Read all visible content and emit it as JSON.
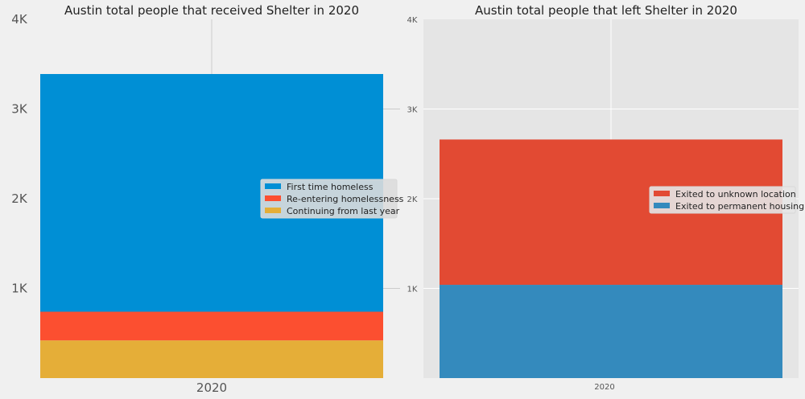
{
  "chart_data": [
    {
      "type": "bar",
      "stacked": true,
      "title": "Austin total people that received Shelter in 2020",
      "categories": [
        "2020"
      ],
      "ylim": [
        0,
        4000
      ],
      "yticks": [
        1000,
        2000,
        3000,
        4000
      ],
      "ytick_labels": [
        "1K",
        "2K",
        "3K",
        "4K"
      ],
      "grid": true,
      "legend_position": "center-right",
      "series": [
        {
          "name": "Continuing from last year",
          "values": [
            420
          ],
          "color": "#e5ae38"
        },
        {
          "name": "Re-entering homelessness",
          "values": [
            320
          ],
          "color": "#fc4f30"
        },
        {
          "name": "First time homeless",
          "values": [
            2650
          ],
          "color": "#008fd5"
        }
      ],
      "legend_order": [
        "First time homeless",
        "Re-entering homelessness",
        "Continuing from last year"
      ]
    },
    {
      "type": "bar",
      "stacked": true,
      "title": "Austin total people that left Shelter in 2020",
      "categories": [
        "2020"
      ],
      "ylim": [
        0,
        4000
      ],
      "yticks": [
        1000,
        2000,
        3000,
        4000
      ],
      "ytick_labels": [
        "1K",
        "2K",
        "3K",
        "4K"
      ],
      "grid": true,
      "legend_position": "center-right",
      "series": [
        {
          "name": "Exited to permanent housing",
          "values": [
            1040
          ],
          "color": "#348abd"
        },
        {
          "name": "Exited to unknown location",
          "values": [
            1620
          ],
          "color": "#e24a33"
        }
      ],
      "legend_order": [
        "Exited to unknown location",
        "Exited to permanent housing"
      ]
    }
  ]
}
